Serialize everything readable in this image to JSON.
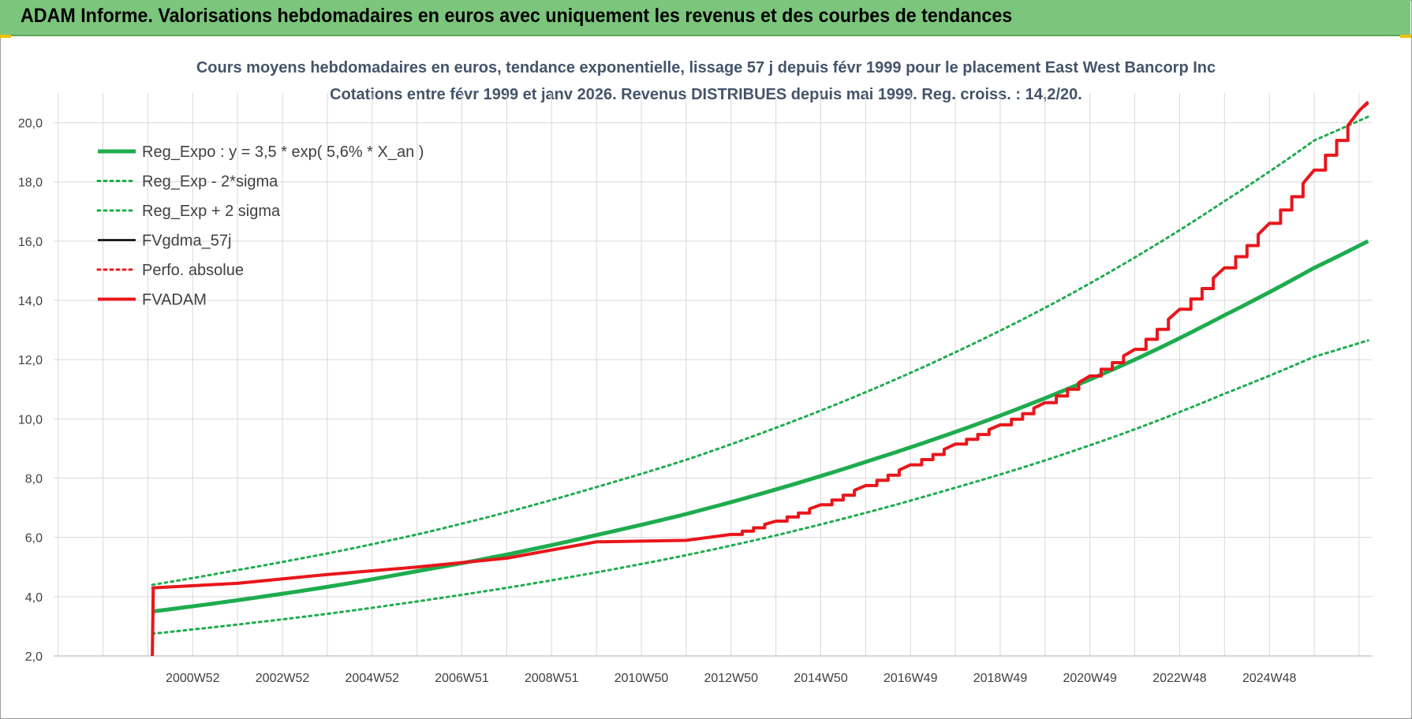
{
  "header": {
    "title": "ADAM Informe. Valorisations hebdomadaires en euros avec uniquement les revenus et des courbes de tendances"
  },
  "colors": {
    "header_bg": "#7cc57c",
    "green": "#1eac4e",
    "red": "#e8161b",
    "black": "#000000",
    "grid": "#d9d9d9",
    "title_text": "#44546a"
  },
  "chart_data": {
    "type": "line",
    "title": "Cours moyens hebdomadaires en euros, tendance exponentielle, lissage 57 j depuis févr 1999 pour le placement East West Bancorp Inc",
    "subtitle": "Cotations entre févr 1999 et janv 2026. Revenus DISTRIBUES depuis mai 1999. Reg. croiss. : 14,2/20.",
    "xlabel": "",
    "ylabel": "",
    "ylim": [
      2,
      21
    ],
    "xlim": [
      1996.9,
      2026.3
    ],
    "y_ticks": [
      "2,0",
      "4,0",
      "6,0",
      "8,0",
      "10,0",
      "12,0",
      "14,0",
      "16,0",
      "18,0",
      "20,0"
    ],
    "y_tick_values": [
      2,
      4,
      6,
      8,
      10,
      12,
      14,
      16,
      18,
      20
    ],
    "x_tick_labels": [
      "2000W52",
      "2002W52",
      "2004W52",
      "2006W51",
      "2008W51",
      "2010W50",
      "2012W50",
      "2014W50",
      "2016W49",
      "2018W49",
      "2020W49",
      "2022W48",
      "2024W48"
    ],
    "x_tick_values": [
      2000.0,
      2002.0,
      2004.0,
      2006.0,
      2008.0,
      2010.0,
      2012.0,
      2014.0,
      2016.0,
      2018.0,
      2020.0,
      2022.0,
      2024.0
    ],
    "legend_position": "top-left",
    "grid": true,
    "series": [
      {
        "name": "Reg_Expo : y = 3,5 * exp( 5,6% *  X_an )",
        "style": "solid-thick",
        "color": "#1eac4e",
        "x": [
          1999.1,
          2001.0,
          2003.0,
          2005.0,
          2007.0,
          2009.0,
          2011.0,
          2013.0,
          2015.0,
          2017.0,
          2019.0,
          2021.0,
          2023.0,
          2025.0,
          2026.2
        ],
        "y": [
          3.5,
          3.88,
          4.33,
          4.86,
          5.42,
          6.08,
          6.79,
          7.62,
          8.55,
          9.56,
          10.7,
          12.0,
          13.5,
          15.1,
          16.0
        ]
      },
      {
        "name": "Reg_Exp - 2*sigma",
        "style": "dotted",
        "color": "#1eac4e",
        "x": [
          1999.1,
          2001.0,
          2003.0,
          2005.0,
          2007.0,
          2009.0,
          2011.0,
          2013.0,
          2015.0,
          2017.0,
          2019.0,
          2021.0,
          2023.0,
          2025.0,
          2026.2
        ],
        "y": [
          2.75,
          3.06,
          3.42,
          3.84,
          4.3,
          4.82,
          5.4,
          6.07,
          6.83,
          7.68,
          8.6,
          9.65,
          10.85,
          12.1,
          12.65
        ]
      },
      {
        "name": "Reg_Exp + 2 sigma",
        "style": "dotted",
        "color": "#1eac4e",
        "x": [
          1999.1,
          2001.0,
          2003.0,
          2005.0,
          2007.0,
          2009.0,
          2011.0,
          2013.0,
          2015.0,
          2017.0,
          2019.0,
          2021.0,
          2023.0,
          2025.0,
          2026.2
        ],
        "y": [
          4.4,
          4.9,
          5.46,
          6.1,
          6.85,
          7.7,
          8.62,
          9.7,
          10.9,
          12.25,
          13.75,
          15.45,
          17.35,
          19.4,
          20.2
        ]
      },
      {
        "name": "FVgdma_57j",
        "style": "solid",
        "color": "#000000",
        "x": [
          1999.1,
          2001.0,
          2003.0,
          2005.0,
          2007.0,
          2009.0,
          2011.0,
          2012.0,
          2013.0,
          2014.0,
          2015.0,
          2016.0,
          2017.0,
          2018.0,
          2019.0,
          2020.0,
          2021.0,
          2022.0,
          2023.0,
          2024.0,
          2025.0,
          2026.0,
          2026.2
        ],
        "y": [
          4.3,
          4.45,
          4.75,
          5.0,
          5.3,
          5.85,
          5.9,
          6.1,
          6.55,
          7.1,
          7.75,
          8.45,
          9.15,
          9.8,
          10.55,
          11.45,
          12.35,
          13.7,
          15.1,
          16.6,
          18.4,
          20.4,
          20.65
        ]
      },
      {
        "name": "Perfo. absolue",
        "style": "dotted",
        "color": "#e8161b",
        "x": [
          1999.1,
          2001.0,
          2003.0,
          2005.0,
          2007.0,
          2009.0,
          2011.0,
          2012.0,
          2013.0,
          2014.0,
          2015.0,
          2016.0,
          2017.0,
          2018.0,
          2019.0,
          2020.0,
          2021.0,
          2022.0,
          2023.0,
          2024.0,
          2025.0,
          2026.0,
          2026.2
        ],
        "y": [
          4.3,
          4.45,
          4.75,
          5.0,
          5.3,
          5.85,
          5.9,
          6.1,
          6.55,
          7.1,
          7.75,
          8.45,
          9.15,
          9.8,
          10.55,
          11.45,
          12.35,
          13.7,
          15.1,
          16.6,
          18.4,
          20.4,
          20.65
        ]
      },
      {
        "name": "FVADAM",
        "style": "solid-thick",
        "color": "#e8161b",
        "x": [
          1999.1,
          1999.12,
          2001.0,
          2003.0,
          2005.0,
          2007.0,
          2009.0,
          2011.0,
          2012.0,
          2013.0,
          2014.0,
          2015.0,
          2016.0,
          2017.0,
          2018.0,
          2019.0,
          2020.0,
          2021.0,
          2022.0,
          2023.0,
          2024.0,
          2025.0,
          2026.0,
          2026.2
        ],
        "y": [
          2.0,
          4.3,
          4.45,
          4.75,
          5.0,
          5.3,
          5.85,
          5.9,
          6.1,
          6.55,
          7.1,
          7.75,
          8.45,
          9.15,
          9.8,
          10.55,
          11.45,
          12.35,
          13.7,
          15.1,
          16.6,
          18.4,
          20.4,
          20.7
        ]
      }
    ]
  }
}
